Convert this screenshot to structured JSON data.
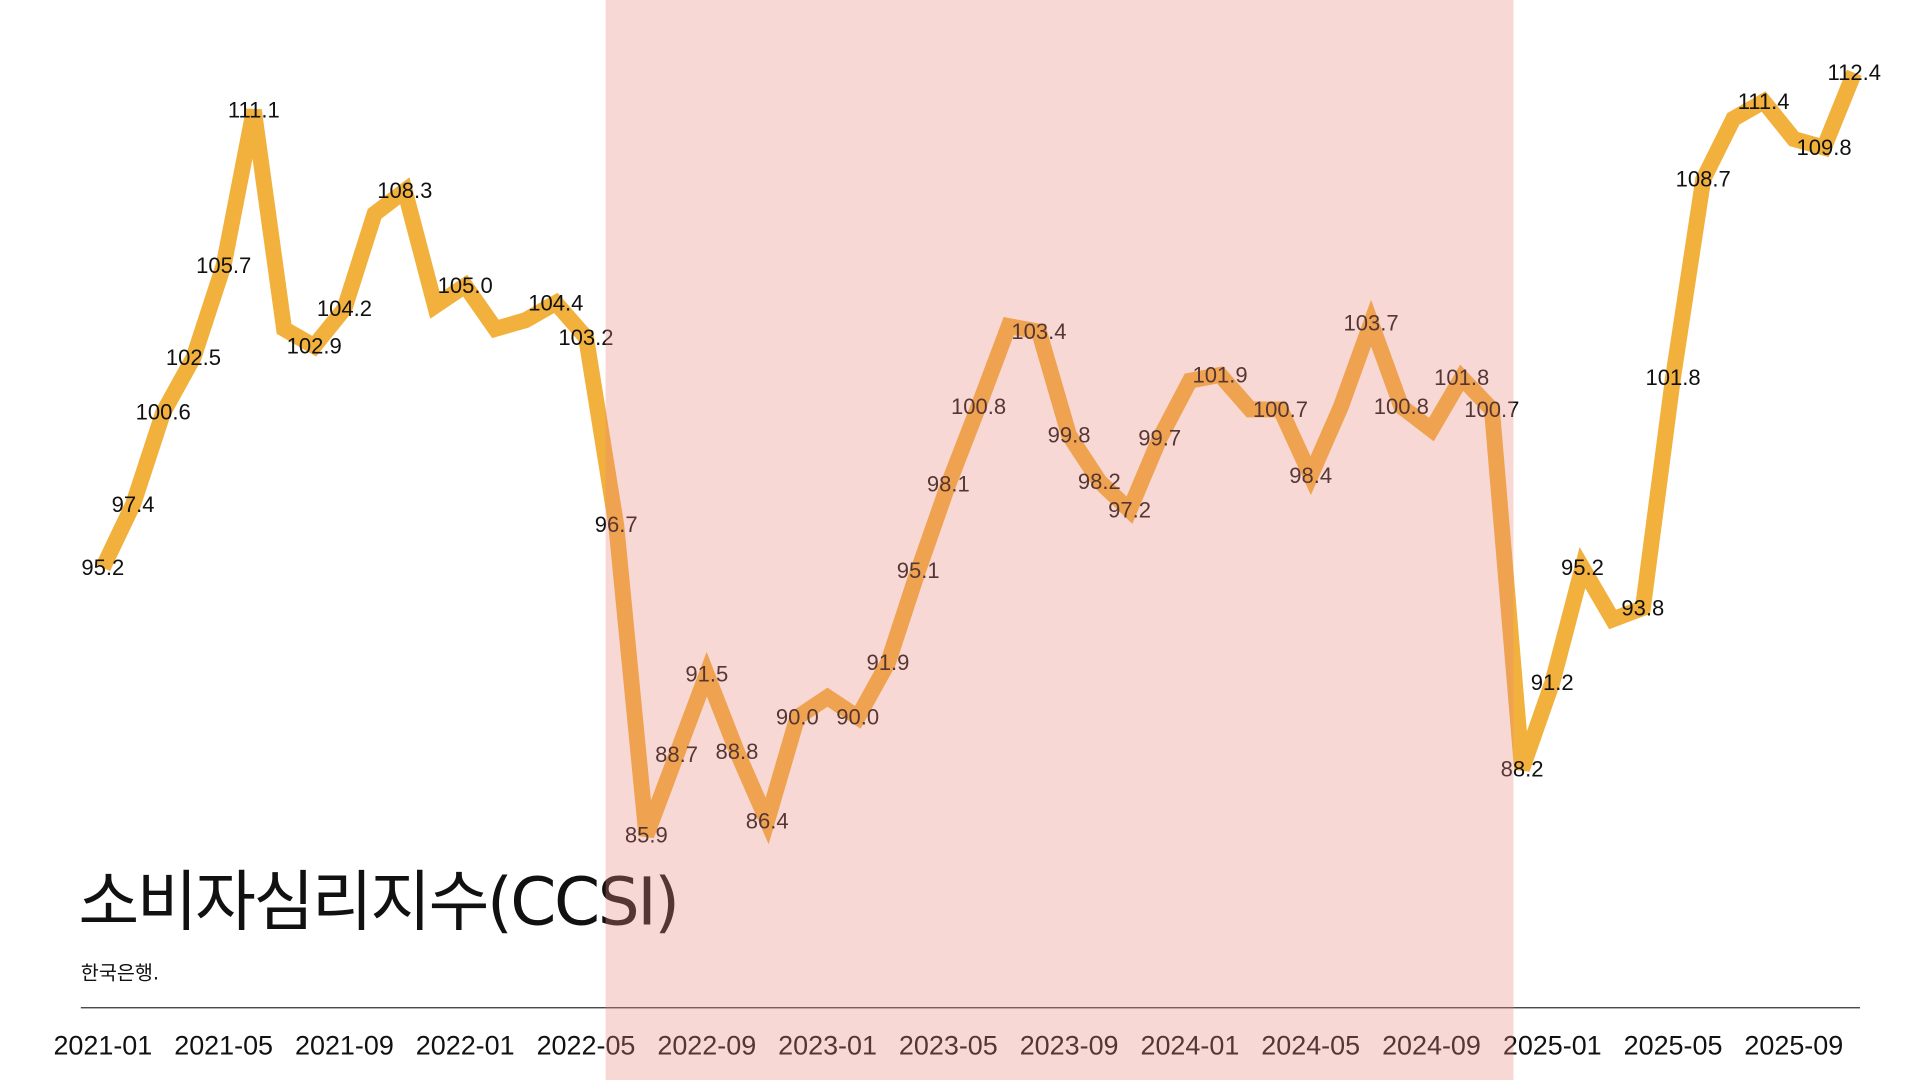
{
  "chart_data": {
    "type": "line",
    "title": "소비자심리지수(CCSI)",
    "source": "한국은행.",
    "x": [
      "2021-01",
      "2021-02",
      "2021-03",
      "2021-04",
      "2021-05",
      "2021-06",
      "2021-07",
      "2021-08",
      "2021-09",
      "2021-10",
      "2021-11",
      "2021-12",
      "2022-01",
      "2022-02",
      "2022-03",
      "2022-04",
      "2022-05",
      "2022-06",
      "2022-07",
      "2022-08",
      "2022-09",
      "2022-10",
      "2022-11",
      "2022-12",
      "2023-01",
      "2023-02",
      "2023-03",
      "2023-04",
      "2023-05",
      "2023-06",
      "2023-07",
      "2023-08",
      "2023-09",
      "2023-10",
      "2023-11",
      "2023-12",
      "2024-01",
      "2024-02",
      "2024-03",
      "2024-04",
      "2024-05",
      "2024-06",
      "2024-07",
      "2024-08",
      "2024-09",
      "2024-10",
      "2024-11",
      "2024-12",
      "2025-01",
      "2025-02",
      "2025-03",
      "2025-04",
      "2025-05",
      "2025-06",
      "2025-07",
      "2025-08",
      "2025-09",
      "2025-10",
      "2025-11"
    ],
    "values": [
      95.2,
      97.4,
      100.6,
      102.5,
      105.7,
      111.1,
      103.5,
      102.9,
      104.2,
      107.5,
      108.3,
      104.3,
      105.0,
      103.5,
      103.8,
      104.4,
      103.2,
      96.7,
      85.9,
      88.7,
      91.5,
      88.8,
      86.4,
      90.0,
      90.7,
      90.0,
      91.9,
      95.1,
      98.1,
      100.8,
      103.6,
      103.4,
      99.8,
      98.2,
      97.2,
      99.7,
      101.7,
      101.9,
      100.7,
      100.7,
      98.4,
      100.8,
      103.7,
      100.8,
      100.0,
      101.8,
      100.7,
      88.2,
      91.2,
      95.2,
      93.4,
      93.8,
      101.8,
      108.7,
      110.8,
      111.4,
      110.1,
      109.8,
      112.4
    ],
    "labeled_indices": [
      0,
      1,
      2,
      3,
      4,
      5,
      7,
      8,
      10,
      12,
      15,
      16,
      17,
      18,
      19,
      20,
      21,
      22,
      23,
      25,
      26,
      27,
      28,
      29,
      31,
      32,
      33,
      34,
      35,
      37,
      39,
      40,
      42,
      43,
      45,
      46,
      47,
      48,
      49,
      51,
      52,
      53,
      55,
      57,
      58
    ],
    "x_ticks": [
      "2021-01",
      "2021-05",
      "2021-09",
      "2022-01",
      "2022-05",
      "2022-09",
      "2023-01",
      "2023-05",
      "2023-09",
      "2024-01",
      "2024-05",
      "2024-09",
      "2025-01",
      "2025-05",
      "2025-09"
    ],
    "shaded_range": [
      "2022-05",
      "2024-12"
    ],
    "ylim": [
      84,
      114
    ],
    "grid": false,
    "colors": {
      "line": "#f2b13c",
      "shade": "#e8877d",
      "text": "#111111"
    }
  }
}
